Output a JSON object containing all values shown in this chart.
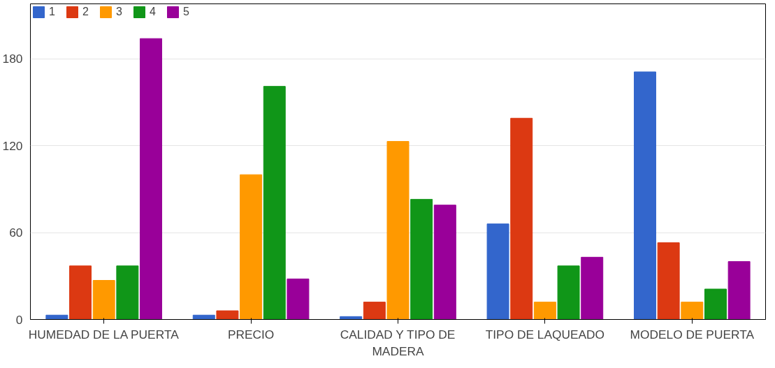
{
  "chart_data": {
    "type": "bar",
    "categories": [
      "HUMEDAD DE LA PUERTA",
      "PRECIO",
      "CALIDAD Y TIPO DE MADERA",
      "TIPO DE LAQUEADO",
      "MODELO DE PUERTA"
    ],
    "series": [
      {
        "name": "1",
        "color": "#3366cc",
        "values": [
          3,
          3,
          2,
          66,
          171
        ]
      },
      {
        "name": "2",
        "color": "#dc3912",
        "values": [
          37,
          6,
          12,
          139,
          53
        ]
      },
      {
        "name": "3",
        "color": "#ff9900",
        "values": [
          27,
          100,
          123,
          12,
          12
        ]
      },
      {
        "name": "4",
        "color": "#109618",
        "values": [
          37,
          161,
          83,
          37,
          21
        ]
      },
      {
        "name": "5",
        "color": "#990099",
        "values": [
          194,
          28,
          79,
          43,
          40
        ]
      }
    ],
    "ylim": [
      0,
      218
    ],
    "yticks": [
      0,
      60,
      120,
      180
    ],
    "grid": "y",
    "legend": "top left"
  }
}
